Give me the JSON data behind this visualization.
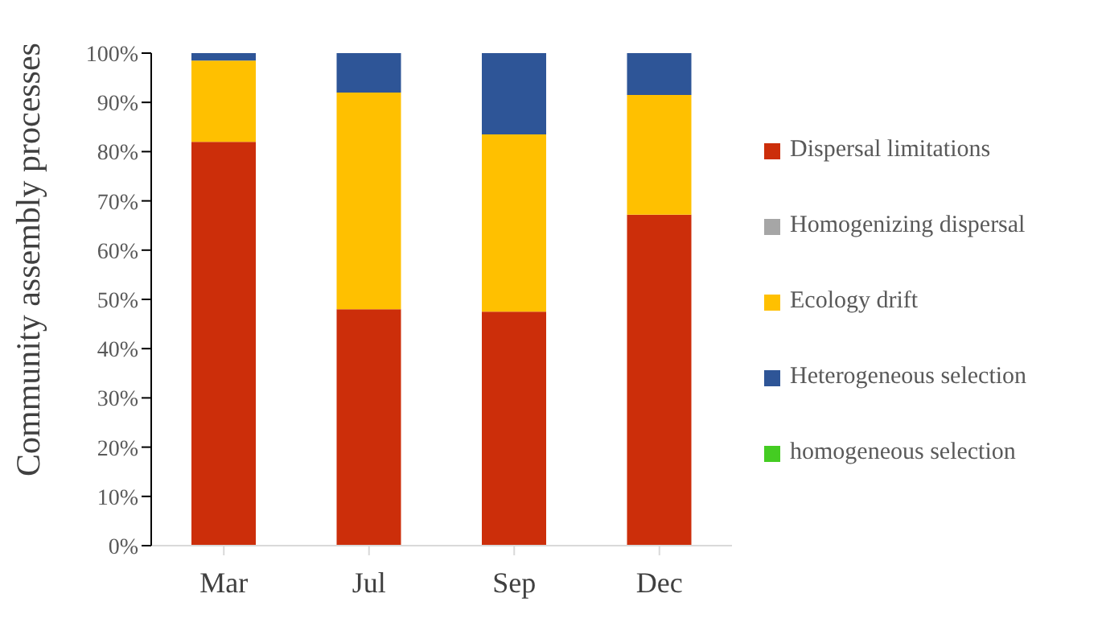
{
  "chart_data": {
    "type": "bar",
    "stacked": true,
    "ylabel": "Community assembly processes",
    "categories": [
      "Mar",
      "Jul",
      "Sep",
      "Dec"
    ],
    "series": [
      {
        "name": "Dispersal limitations",
        "color": "#cc2e0a",
        "values": [
          82,
          48,
          47.5,
          67.2
        ]
      },
      {
        "name": "Homogenizing dispersal",
        "color": "#a6a6a6",
        "values": [
          0,
          0,
          0,
          0
        ]
      },
      {
        "name": "Ecology drift",
        "color": "#ffc000",
        "values": [
          16.5,
          44,
          36,
          24.3
        ]
      },
      {
        "name": "Heterogeneous selection",
        "color": "#2e5597",
        "values": [
          1.5,
          8,
          16.5,
          8.5
        ]
      },
      {
        "name": "homogeneous selection",
        "color": "#44cc22",
        "values": [
          0,
          0,
          0,
          0
        ]
      }
    ],
    "ylim": [
      0,
      100
    ],
    "yticks": [
      {
        "value": 0,
        "label": "0%"
      },
      {
        "value": 10,
        "label": "10%"
      },
      {
        "value": 20,
        "label": "20%"
      },
      {
        "value": 30,
        "label": "30%"
      },
      {
        "value": 40,
        "label": "40%"
      },
      {
        "value": 50,
        "label": "50%"
      },
      {
        "value": 60,
        "label": "60%"
      },
      {
        "value": 70,
        "label": "70%"
      },
      {
        "value": 80,
        "label": "80%"
      },
      {
        "value": 90,
        "label": "90%"
      },
      {
        "value": 100,
        "label": "100%"
      }
    ],
    "grid": false,
    "legend": "right"
  }
}
